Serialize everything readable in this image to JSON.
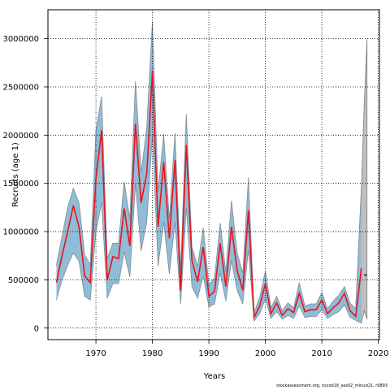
{
  "chart_data": {
    "type": "line",
    "xlabel": "Years",
    "ylabel": "Recruits (age 1)",
    "xlim": [
      1961.5,
      2020.2
    ],
    "ylim": [
      -120000,
      3300000
    ],
    "x_ticks": [
      1970,
      1980,
      1990,
      2000,
      2010,
      2020
    ],
    "y_ticks": [
      0,
      500000,
      1000000,
      1500000,
      2000000,
      2500000,
      3000000
    ],
    "y_tick_labels": [
      "0",
      "500000",
      "1000000",
      "1500000",
      "2000000",
      "2500000",
      "3000000"
    ],
    "grid": true,
    "colors": {
      "estimate_line": "#e8141c",
      "confidence_band": "#8fbcd6",
      "band_edge": "#7f8c99",
      "projection_band": "#bfbfbf",
      "projection_edge": "#808080",
      "projection_line": "#404040",
      "grid": "#000000"
    },
    "series": [
      {
        "role": "estimate",
        "x": [
          1963,
          1964,
          1965,
          1966,
          1967,
          1968,
          1969,
          1970,
          1971,
          1972,
          1973,
          1974,
          1975,
          1976,
          1977,
          1978,
          1979,
          1980,
          1981,
          1982,
          1983,
          1984,
          1985,
          1986,
          1987,
          1988,
          1989,
          1990,
          1991,
          1992,
          1993,
          1994,
          1995,
          1996,
          1997,
          1998,
          1999,
          2000,
          2001,
          2002,
          2003,
          2004,
          2005,
          2006,
          2007,
          2008,
          2009,
          2010,
          2011,
          2012,
          2013,
          2014,
          2015,
          2016,
          2017
        ],
        "y": [
          470000,
          750000,
          1000000,
          1270000,
          1050000,
          540000,
          470000,
          1550000,
          2050000,
          500000,
          740000,
          720000,
          1240000,
          850000,
          2120000,
          1300000,
          1600000,
          2660000,
          1050000,
          1720000,
          930000,
          1740000,
          390000,
          1900000,
          700000,
          480000,
          840000,
          330000,
          380000,
          880000,
          430000,
          1050000,
          600000,
          390000,
          1220000,
          110000,
          230000,
          460000,
          150000,
          260000,
          130000,
          200000,
          160000,
          360000,
          170000,
          190000,
          190000,
          290000,
          150000,
          210000,
          260000,
          360000,
          180000,
          120000,
          620000
        ]
      },
      {
        "role": "lower",
        "x": [
          1963,
          1964,
          1965,
          1966,
          1967,
          1968,
          1969,
          1970,
          1971,
          1972,
          1973,
          1974,
          1975,
          1976,
          1977,
          1978,
          1979,
          1980,
          1981,
          1982,
          1983,
          1984,
          1985,
          1986,
          1987,
          1988,
          1989,
          1990,
          1991,
          1992,
          1993,
          1994,
          1995,
          1996,
          1997,
          1998,
          1999,
          2000,
          2001,
          2002,
          2003,
          2004,
          2005,
          2006,
          2007,
          2008,
          2009,
          2010,
          2011,
          2012,
          2013,
          2014,
          2015,
          2016,
          2017
        ],
        "y": [
          290000,
          500000,
          650000,
          780000,
          690000,
          330000,
          290000,
          1000000,
          1300000,
          310000,
          460000,
          460000,
          790000,
          530000,
          1500000,
          800000,
          1100000,
          2000000,
          640000,
          1100000,
          560000,
          1100000,
          250000,
          1250000,
          430000,
          310000,
          540000,
          220000,
          250000,
          570000,
          280000,
          700000,
          390000,
          250000,
          810000,
          70000,
          150000,
          300000,
          100000,
          170000,
          90000,
          130000,
          100000,
          230000,
          110000,
          120000,
          120000,
          190000,
          100000,
          140000,
          170000,
          240000,
          110000,
          80000,
          50000
        ]
      },
      {
        "role": "upper",
        "x": [
          1963,
          1964,
          1965,
          1966,
          1967,
          1968,
          1969,
          1970,
          1971,
          1972,
          1973,
          1974,
          1975,
          1976,
          1977,
          1978,
          1979,
          1980,
          1981,
          1982,
          1983,
          1984,
          1985,
          1986,
          1987,
          1988,
          1989,
          1990,
          1991,
          1992,
          1993,
          1994,
          1995,
          1996,
          1997,
          1998,
          1999,
          2000,
          2001,
          2002,
          2003,
          2004,
          2005,
          2006,
          2007,
          2008,
          2009,
          2010,
          2011,
          2012,
          2013,
          2014,
          2015,
          2016,
          2017
        ],
        "y": [
          650000,
          950000,
          1250000,
          1450000,
          1300000,
          760000,
          660000,
          2050000,
          2400000,
          720000,
          880000,
          880000,
          1520000,
          1130000,
          2560000,
          1610000,
          2080000,
          3180000,
          1410000,
          2010000,
          1130000,
          2020000,
          600000,
          2220000,
          840000,
          640000,
          1040000,
          450000,
          520000,
          1090000,
          580000,
          1320000,
          780000,
          570000,
          1560000,
          160000,
          320000,
          590000,
          210000,
          330000,
          180000,
          260000,
          210000,
          470000,
          230000,
          250000,
          250000,
          370000,
          200000,
          280000,
          340000,
          430000,
          260000,
          200000,
          1450000
        ]
      },
      {
        "role": "projection",
        "x": [
          2016,
          2017,
          2017.5,
          2018
        ],
        "y": [
          120000,
          620000,
          550000,
          550000
        ],
        "lower": [
          80000,
          50000,
          180000,
          90000
        ],
        "upper": [
          200000,
          1450000,
          2300000,
          3000000
        ]
      }
    ]
  },
  "footer": "stockassessment.org, nscod18_ass02_minusQ1, r9893"
}
